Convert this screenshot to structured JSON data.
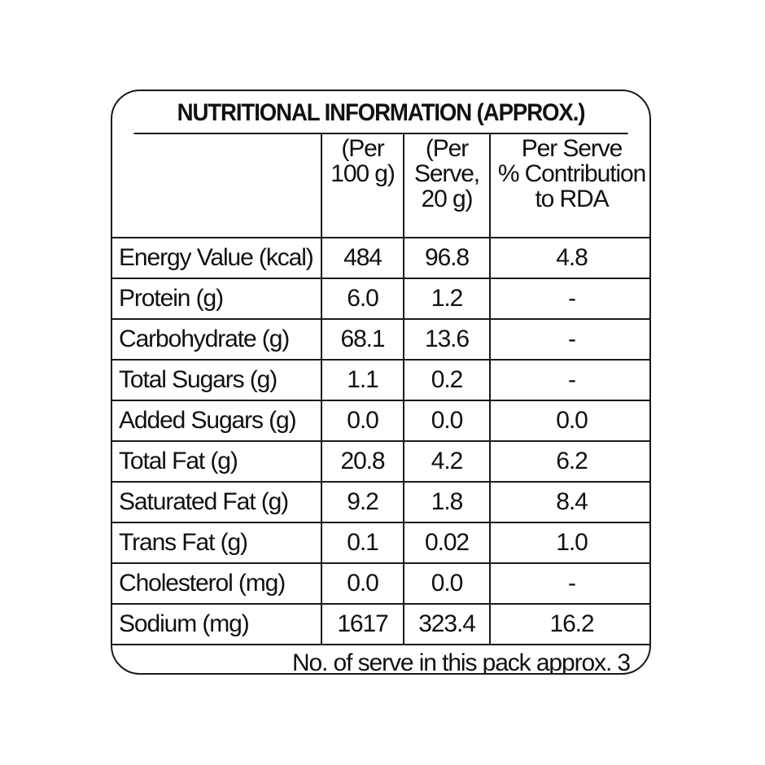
{
  "title": "NUTRITIONAL INFORMATION (APPROX.)",
  "headers": {
    "nutrient": "",
    "per_100g": [
      "(Per",
      "100 g)"
    ],
    "per_serve": [
      "(Per",
      "Serve,",
      "20 g)"
    ],
    "rda": [
      "Per Serve",
      "% Contribution",
      "to RDA"
    ]
  },
  "rows": [
    {
      "nutrient": "Energy Value (kcal)",
      "per_100g": "484",
      "per_serve": "96.8",
      "rda": "4.8"
    },
    {
      "nutrient": "Protein (g)",
      "per_100g": "6.0",
      "per_serve": "1.2",
      "rda": "-"
    },
    {
      "nutrient": "Carbohydrate (g)",
      "per_100g": "68.1",
      "per_serve": "13.6",
      "rda": "-"
    },
    {
      "nutrient": "Total Sugars (g)",
      "per_100g": "1.1",
      "per_serve": "0.2",
      "rda": "-"
    },
    {
      "nutrient": "Added Sugars (g)",
      "per_100g": "0.0",
      "per_serve": "0.0",
      "rda": "0.0"
    },
    {
      "nutrient": "Total Fat (g)",
      "per_100g": "20.8",
      "per_serve": "4.2",
      "rda": "6.2"
    },
    {
      "nutrient": "Saturated Fat (g)",
      "per_100g": "9.2",
      "per_serve": "1.8",
      "rda": "8.4"
    },
    {
      "nutrient": "Trans Fat (g)",
      "per_100g": "0.1",
      "per_serve": "0.02",
      "rda": "1.0"
    },
    {
      "nutrient": "Cholesterol (mg)",
      "per_100g": "0.0",
      "per_serve": "0.0",
      "rda": "-"
    },
    {
      "nutrient": "Sodium (mg)",
      "per_100g": "1617",
      "per_serve": "323.4",
      "rda": "16.2"
    }
  ],
  "footer": "No. of serve in this pack approx. 3"
}
